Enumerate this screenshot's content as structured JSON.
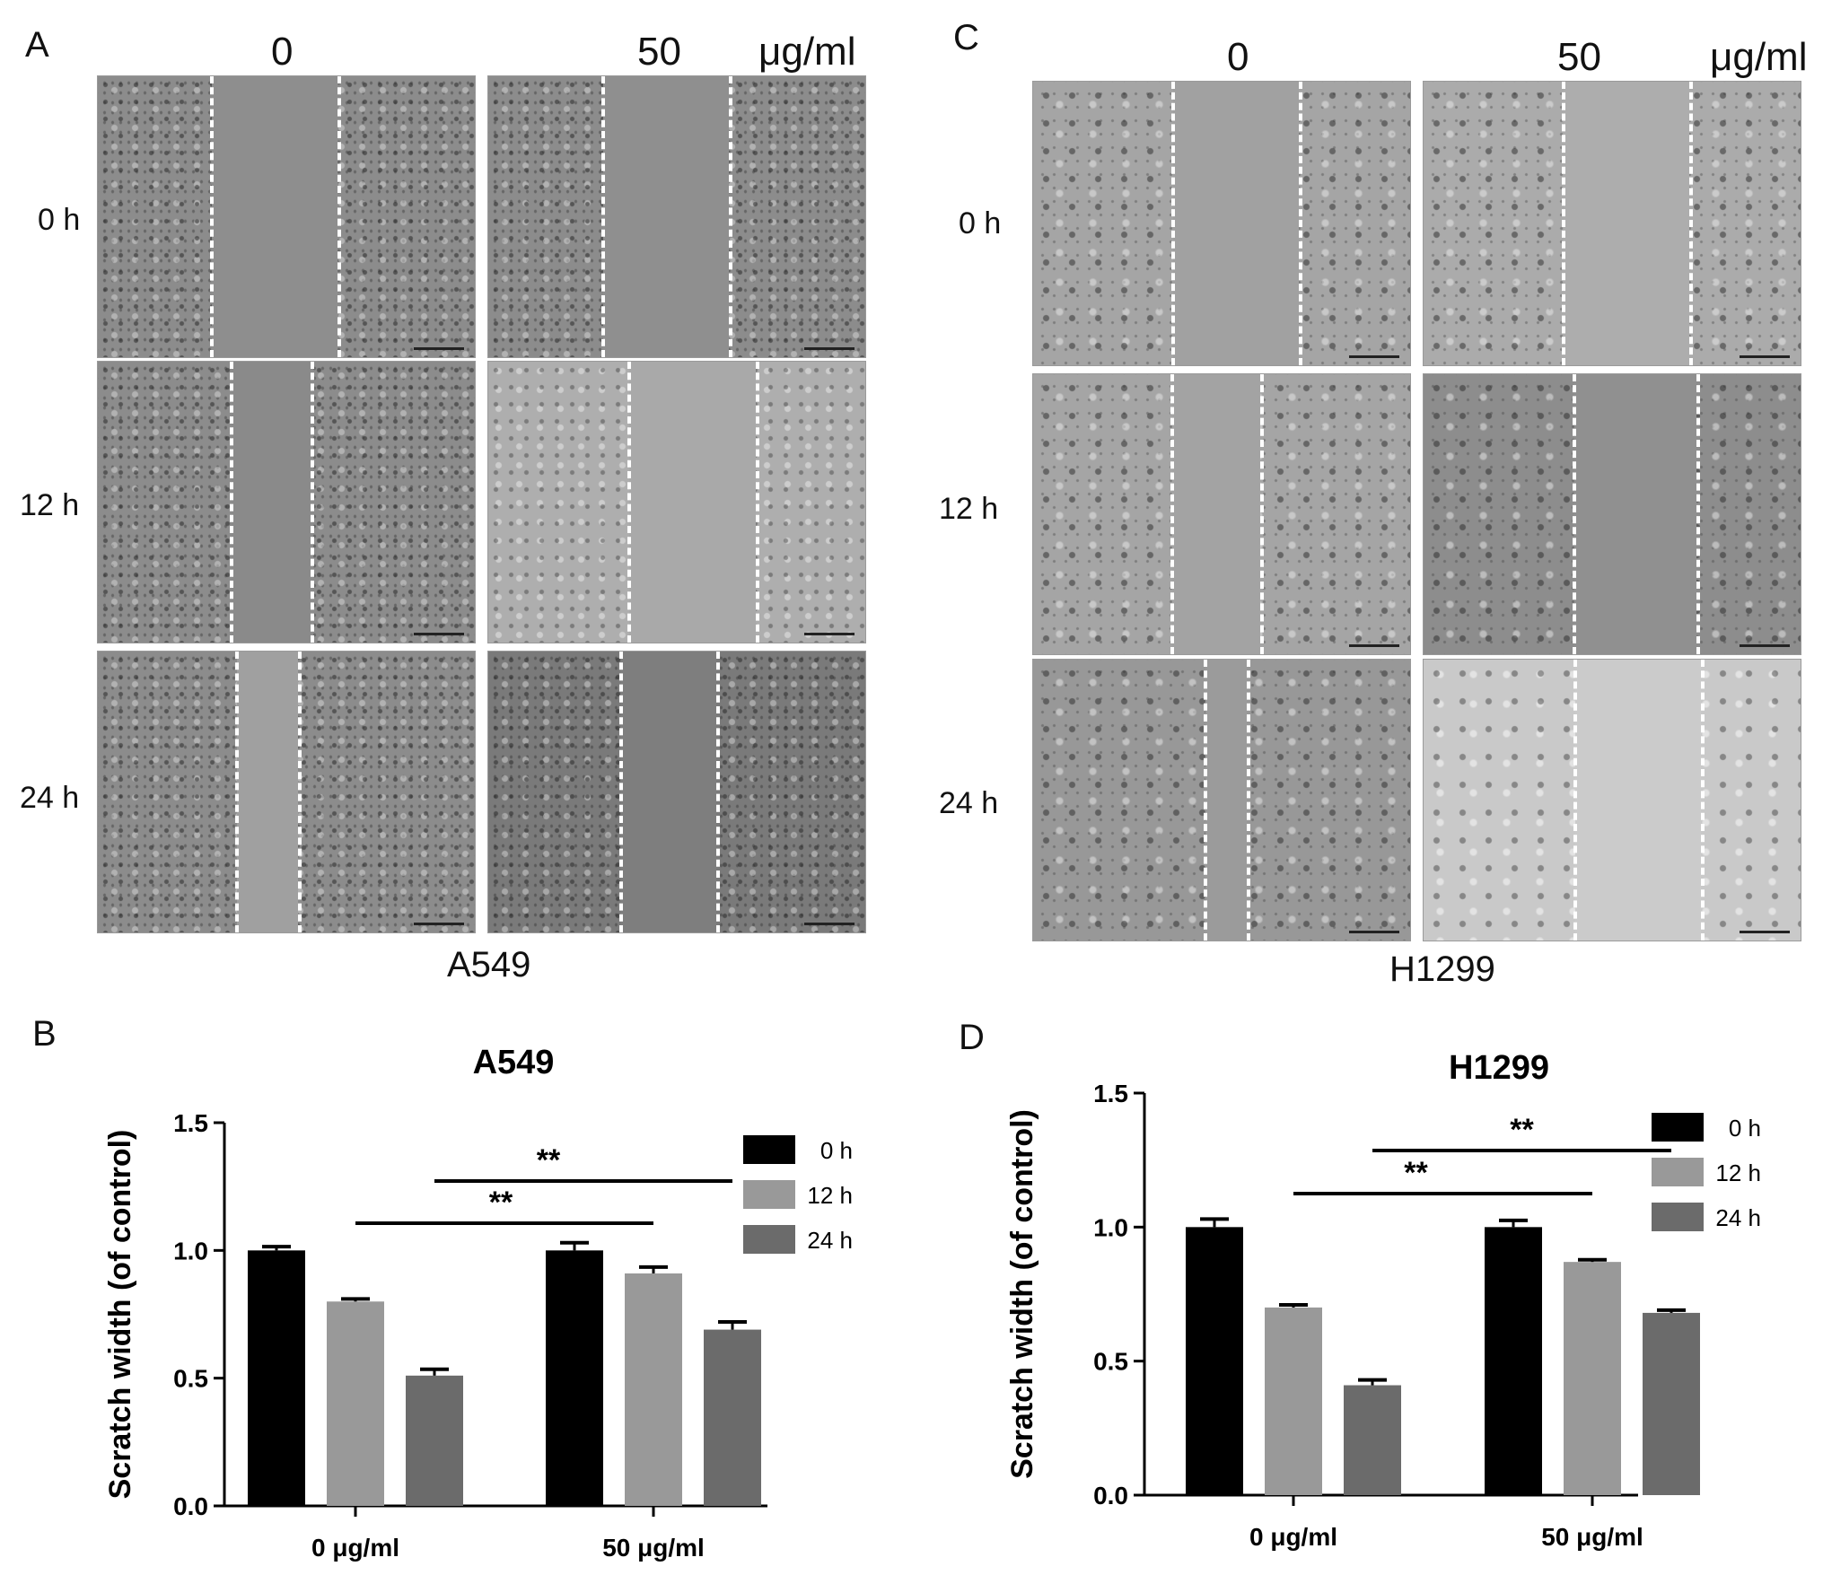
{
  "panels": {
    "A": {
      "letter": "A",
      "conc_labels": [
        "0",
        "50"
      ],
      "unit": "μg/ml",
      "time_labels": [
        "0 h",
        "12 h",
        "24 h"
      ],
      "cell_line": "A549"
    },
    "C": {
      "letter": "C",
      "conc_labels": [
        "0",
        "50"
      ],
      "unit": "μg/ml",
      "time_labels": [
        "0 h",
        "12 h",
        "24 h"
      ],
      "cell_line": "H1299"
    },
    "B": {
      "letter": "B"
    },
    "D": {
      "letter": "D"
    }
  },
  "chart_data": [
    {
      "id": "B",
      "type": "bar",
      "title": "A549",
      "ylabel": "Scratch width (of control)",
      "xlabel": "",
      "ylim": [
        0,
        1.5
      ],
      "yticks": [
        "0.0",
        "0.5",
        "1.0",
        "1.5"
      ],
      "categories": [
        "0 μg/ml",
        "50 μg/ml"
      ],
      "series": [
        {
          "name": "0 h",
          "color": "#000000",
          "values": [
            1.0,
            1.0
          ],
          "errors": [
            0.015,
            0.03
          ]
        },
        {
          "name": "12 h",
          "color": "#999999",
          "values": [
            0.8,
            0.91
          ],
          "errors": [
            0.01,
            0.025
          ]
        },
        {
          "name": "24 h",
          "color": "#6b6b6b",
          "values": [
            0.51,
            0.69
          ],
          "errors": [
            0.025,
            0.03
          ]
        }
      ],
      "significance": [
        {
          "label": "**",
          "from": [
            0,
            1
          ],
          "to": [
            1,
            1
          ]
        },
        {
          "label": "**",
          "from": [
            0,
            2
          ],
          "to": [
            1,
            2
          ]
        }
      ],
      "legend": "top-right"
    },
    {
      "id": "D",
      "type": "bar",
      "title": "H1299",
      "ylabel": "Scratch width (of control)",
      "xlabel": "",
      "ylim": [
        0,
        1.5
      ],
      "yticks": [
        "0.0",
        "0.5",
        "1.0",
        "1.5"
      ],
      "categories": [
        "0 μg/ml",
        "50 μg/ml"
      ],
      "series": [
        {
          "name": "0 h",
          "color": "#000000",
          "values": [
            1.0,
            1.0
          ],
          "errors": [
            0.03,
            0.025
          ]
        },
        {
          "name": "12 h",
          "color": "#999999",
          "values": [
            0.7,
            0.87
          ],
          "errors": [
            0.01,
            0.008
          ]
        },
        {
          "name": "24 h",
          "color": "#6b6b6b",
          "values": [
            0.41,
            0.68
          ],
          "errors": [
            0.02,
            0.01
          ]
        }
      ],
      "significance": [
        {
          "label": "**",
          "from": [
            0,
            1
          ],
          "to": [
            1,
            1
          ]
        },
        {
          "label": "**",
          "from": [
            0,
            2
          ],
          "to": [
            1,
            2
          ]
        }
      ],
      "legend": "top-right"
    }
  ]
}
